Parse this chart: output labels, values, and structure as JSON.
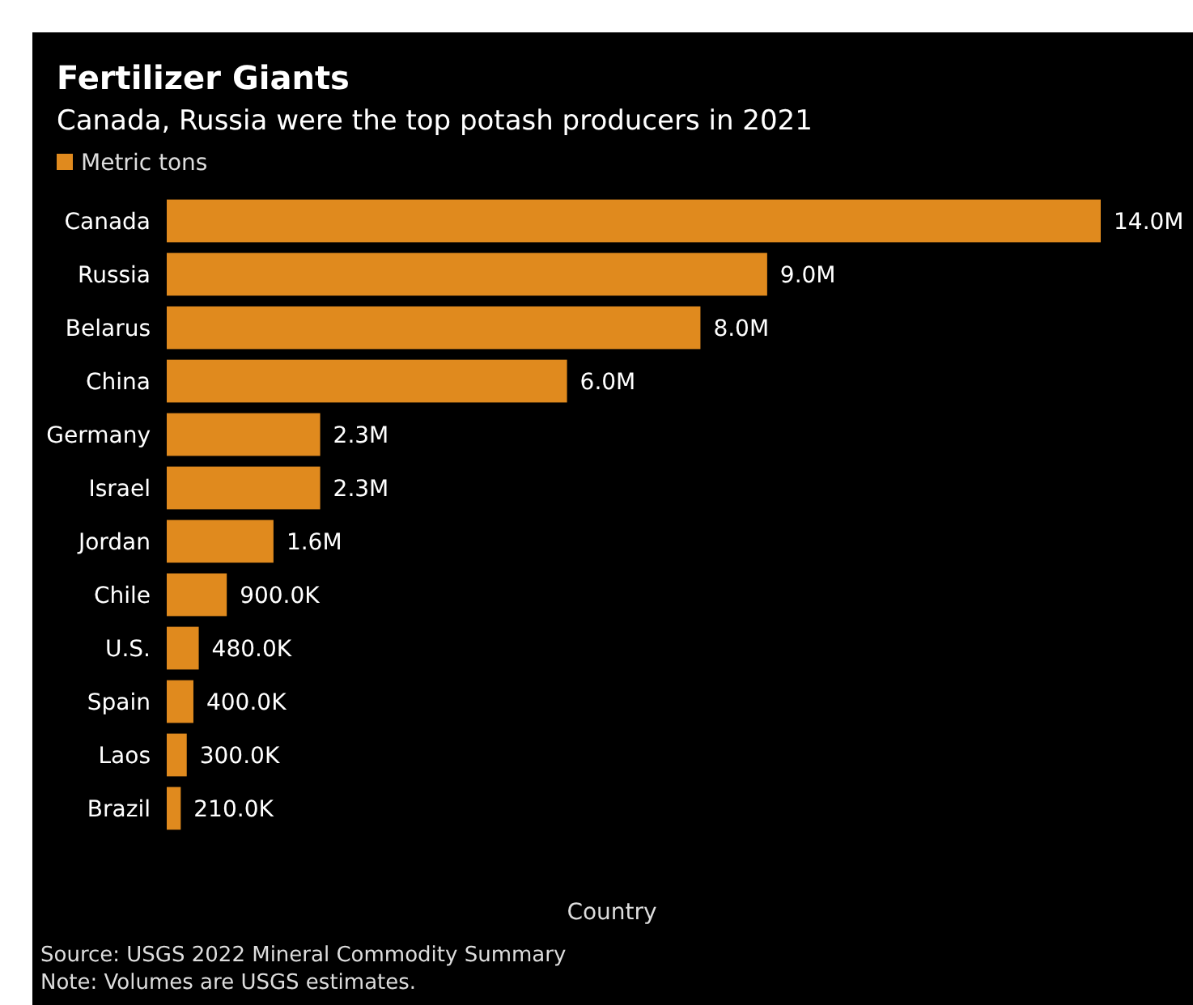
{
  "chart_data": {
    "type": "bar",
    "orientation": "horizontal",
    "title": "Fertilizer Giants",
    "subtitle": "Canada, Russia were the top potash producers in 2021",
    "xlabel": "Country",
    "categories": [
      "Canada",
      "Russia",
      "Belarus",
      "China",
      "Germany",
      "Israel",
      "Jordan",
      "Chile",
      "U.S.",
      "Spain",
      "Laos",
      "Brazil"
    ],
    "series": [
      {
        "name": "Metric tons",
        "color": "#e08a1e",
        "values": [
          14000000,
          9000000,
          8000000,
          6000000,
          2300000,
          2300000,
          1600000,
          900000,
          480000,
          400000,
          300000,
          210000
        ],
        "value_labels": [
          "14.0M",
          "9.0M",
          "8.0M",
          "6.0M",
          "2.3M",
          "2.3M",
          "1.6M",
          "900.0K",
          "480.0K",
          "400.0K",
          "300.0K",
          "210.0K"
        ]
      }
    ],
    "legend": "top left",
    "annotations": [
      "Source: USGS 2022 Mineral Commodity Summary",
      "Note: Volumes are USGS estimates."
    ]
  }
}
